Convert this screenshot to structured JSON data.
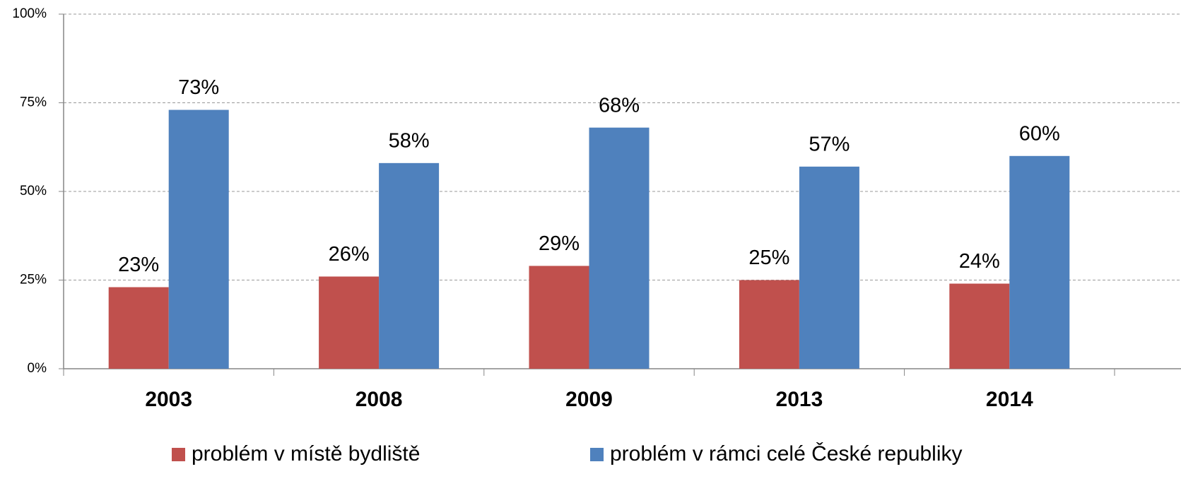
{
  "chart_data": {
    "type": "bar",
    "categories": [
      "2003",
      "2008",
      "2009",
      "2013",
      "2014"
    ],
    "series": [
      {
        "name": "problém v místě bydliště",
        "color": "#c0504d",
        "values": [
          23,
          26,
          29,
          25,
          24
        ],
        "value_labels": [
          "23%",
          "26%",
          "29%",
          "25%",
          "24%"
        ]
      },
      {
        "name": "problém v rámci celé České republiky",
        "color": "#4f81bd",
        "values": [
          73,
          58,
          68,
          57,
          60
        ],
        "value_labels": [
          "73%",
          "58%",
          "68%",
          "57%",
          "60%"
        ]
      }
    ],
    "ylim": [
      0,
      100
    ],
    "yticks": [
      {
        "value": 0,
        "label": "0%"
      },
      {
        "value": 25,
        "label": "25%"
      },
      {
        "value": 50,
        "label": "50%"
      },
      {
        "value": 75,
        "label": "75%"
      },
      {
        "value": 100,
        "label": "100%"
      }
    ],
    "grid": true,
    "legend": "bottom"
  }
}
